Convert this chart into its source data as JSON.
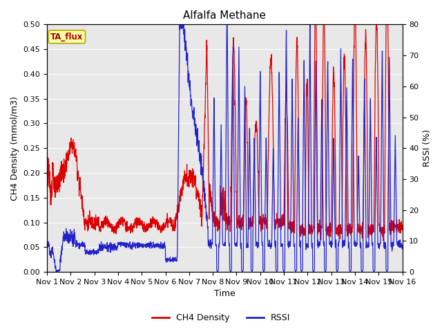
{
  "title": "Alfalfa Methane",
  "xlabel": "Time",
  "ylabel_left": "CH4 Density (mmol/m3)",
  "ylabel_right": "RSSI (%)",
  "ylim_left": [
    0.0,
    0.5
  ],
  "ylim_right": [
    0,
    80
  ],
  "tag_label": "TA_flux",
  "bg_color": "#e8e8e8",
  "fig_bg": "#ffffff",
  "line_color_ch4": "#dd0000",
  "line_color_rssi": "#2222cc",
  "legend_entries": [
    "CH4 Density",
    "RSSI"
  ],
  "x_ticks": [
    1,
    2,
    3,
    4,
    5,
    6,
    7,
    8,
    9,
    10,
    11,
    12,
    13,
    14,
    15,
    16
  ],
  "x_tick_labels": [
    "Nov 1",
    "Nov 2",
    "Nov 3",
    "Nov 4",
    "Nov 5",
    "Nov 6",
    "Nov 7",
    "Nov 8",
    "Nov 9",
    "Nov 10",
    "Nov 11",
    "Nov 12",
    "Nov 13",
    "Nov 14",
    "Nov 15",
    "Nov 16"
  ],
  "yticks_left": [
    0.0,
    0.05,
    0.1,
    0.15,
    0.2,
    0.25,
    0.3,
    0.35,
    0.4,
    0.45,
    0.5
  ],
  "yticks_right": [
    0,
    10,
    20,
    30,
    40,
    50,
    60,
    70,
    80
  ]
}
